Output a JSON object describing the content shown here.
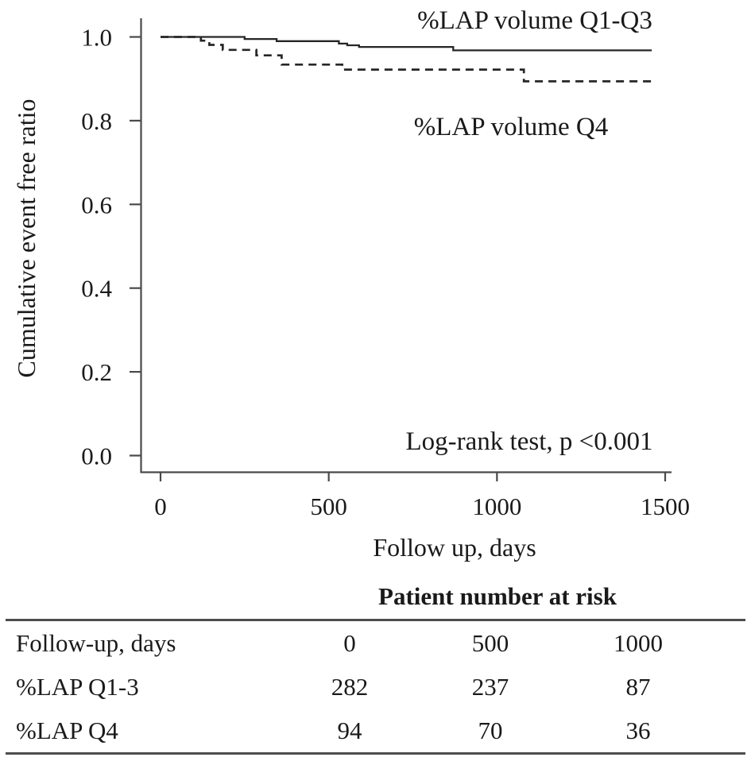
{
  "figure": {
    "y_axis_title": "Cumulative event free ratio",
    "x_axis_title": "Follow up, days",
    "label_q1q3": "%LAP volume Q1-Q3",
    "label_q4": "%LAP volume Q4",
    "annotation": "Log-rank test, p <0.001"
  },
  "chart_data": {
    "type": "line",
    "subtype": "kaplan-meier-step",
    "xlabel": "Follow up, days",
    "ylabel": "Cumulative event free ratio",
    "xlim": [
      0,
      1500
    ],
    "ylim": [
      0.0,
      1.0
    ],
    "x_ticks": [
      0,
      500,
      1000,
      1500
    ],
    "y_ticks": [
      1.0,
      0.8,
      0.6,
      0.4,
      0.2,
      0.0
    ],
    "grid": false,
    "legend_position": "inline-labels",
    "annotation": "Log-rank test, p <0.001",
    "line_color": "#262626",
    "series": [
      {
        "name": "%LAP volume Q1-Q3",
        "style": "solid",
        "steps": [
          [
            0,
            1.0
          ],
          [
            250,
            0.995
          ],
          [
            345,
            0.99
          ],
          [
            530,
            0.984
          ],
          [
            555,
            0.98
          ],
          [
            590,
            0.976
          ],
          [
            870,
            0.968
          ]
        ],
        "end_x": 1460
      },
      {
        "name": "%LAP volume Q4",
        "style": "dashed",
        "steps": [
          [
            0,
            1.0
          ],
          [
            120,
            0.991
          ],
          [
            145,
            0.981
          ],
          [
            185,
            0.969
          ],
          [
            285,
            0.956
          ],
          [
            360,
            0.934
          ],
          [
            540,
            0.922
          ],
          [
            1080,
            0.894
          ]
        ],
        "end_x": 1460
      }
    ]
  },
  "risk_table": {
    "title": "Patient number at risk",
    "rows": [
      {
        "label": "Follow-up, days",
        "values": [
          "0",
          "500",
          "1000"
        ]
      },
      {
        "label": "%LAP Q1-3",
        "values": [
          "282",
          "237",
          "87"
        ]
      },
      {
        "label": "%LAP Q4",
        "values": [
          "94",
          "70",
          "36"
        ]
      }
    ]
  }
}
